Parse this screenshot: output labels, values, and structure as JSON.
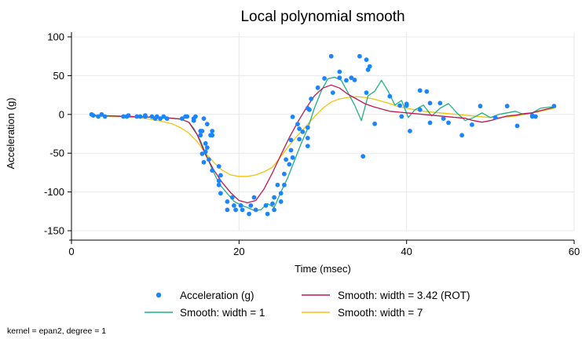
{
  "chart_data": {
    "type": "scatter",
    "title": "Local polynomial smooth",
    "xlabel": "Time (msec)",
    "ylabel": "Acceleration (g)",
    "xlim": [
      0,
      60
    ],
    "ylim": [
      -150,
      100
    ],
    "xticks": [
      0,
      20,
      40,
      60
    ],
    "yticks": [
      -150,
      -100,
      -50,
      0,
      50,
      100
    ],
    "grid": true,
    "legend_position": "bottom",
    "note": "kernel = epan2, degree = 1",
    "colors": {
      "scatter": "#1a85ff",
      "rot": "#c1184f",
      "w1": "#1fb082",
      "w7": "#f1c40f",
      "grid": "#e8e8e8",
      "background": "#ffffff"
    },
    "scatter": {
      "name": "Acceleration (g)",
      "x": [
        2.4,
        2.6,
        3.2,
        3.6,
        4.0,
        6.2,
        6.6,
        6.8,
        7.8,
        8.2,
        8.8,
        8.8,
        9.6,
        10.0,
        10.2,
        10.6,
        11.0,
        11.4,
        13.2,
        13.6,
        13.8,
        14.6,
        14.6,
        14.8,
        15.4,
        15.4,
        15.6,
        15.6,
        15.8,
        15.8,
        16.0,
        16.0,
        16.2,
        16.2,
        16.4,
        16.6,
        16.8,
        16.8,
        16.8,
        17.6,
        17.6,
        17.6,
        17.8,
        17.8,
        18.6,
        18.6,
        19.2,
        19.4,
        19.6,
        20.2,
        20.4,
        21.2,
        21.4,
        21.8,
        22.0,
        23.2,
        23.4,
        24.0,
        24.2,
        24.2,
        24.6,
        25.0,
        25.0,
        25.4,
        25.4,
        25.6,
        26.0,
        26.2,
        26.2,
        26.4,
        26.4,
        27.0,
        27.2,
        27.2,
        27.6,
        28.2,
        28.2,
        28.2,
        28.2,
        28.4,
        28.6,
        29.4,
        30.2,
        31.0,
        31.2,
        32.0,
        32.0,
        32.8,
        33.4,
        33.8,
        34.4,
        34.8,
        35.2,
        35.2,
        35.4,
        35.6,
        36.2,
        38.0,
        39.2,
        39.4,
        40.0,
        40.0,
        40.4,
        41.6,
        41.6,
        42.4,
        42.8,
        42.8,
        44.0,
        44.4,
        45.0,
        46.6,
        47.8,
        48.8,
        50.6,
        52.0,
        53.2,
        55.0,
        55.0,
        55.4,
        57.6
      ],
      "y": [
        0.0,
        -1.3,
        -2.7,
        0.0,
        -2.7,
        -2.7,
        -2.7,
        -1.3,
        -2.7,
        -2.7,
        -2.7,
        -1.3,
        -2.7,
        -5.4,
        -2.7,
        -5.4,
        -2.7,
        -5.4,
        -5.4,
        -2.7,
        -2.7,
        -5.4,
        -8.0,
        -2.7,
        -26.8,
        -21.5,
        -21.5,
        -50.8,
        -61.7,
        -5.4,
        -48.2,
        -37.5,
        -42.8,
        -12.4,
        -58.2,
        -26.8,
        -21.5,
        -26.8,
        -72.3,
        -67.0,
        -85.6,
        -91.0,
        -101.7,
        -78.5,
        -112.4,
        -123.1,
        -107.1,
        -117.5,
        -123.1,
        -117.5,
        -123.1,
        -128.3,
        -117.5,
        -107.1,
        -123.1,
        -117.5,
        -128.3,
        -115.1,
        -123.1,
        -107.1,
        -91.0,
        -112.4,
        -101.7,
        -91.0,
        -76.8,
        -58.2,
        -64.4,
        -46.2,
        -33.0,
        -55.7,
        -3.1,
        -12.4,
        -18.5,
        -32.0,
        -22.4,
        -40.8,
        -30.5,
        -17.0,
        8.0,
        6.1,
        20.0,
        34.4,
        46.5,
        75.0,
        28.0,
        47.3,
        55.0,
        43.9,
        47.3,
        44.4,
        75.0,
        -54.0,
        70.5,
        28.0,
        57.7,
        61.9,
        -12.1,
        23.4,
        11.4,
        -2.6,
        13.6,
        11.4,
        -21.5,
        6.1,
        30.9,
        29.6,
        -10.7,
        14.6,
        14.6,
        -5.4,
        -10.7,
        -26.8,
        -13.3,
        10.7,
        -4.0,
        10.7,
        -14.8,
        -2.7,
        -1.3,
        -2.7,
        10.7
      ]
    },
    "series": [
      {
        "name": "Smooth: width = 3.42 (ROT)",
        "x": [
          2.4,
          5,
          8,
          11,
          13,
          14,
          15,
          16,
          17,
          18,
          19,
          20,
          21,
          22,
          23,
          24,
          25,
          26,
          27,
          28,
          29,
          30,
          31,
          32,
          33,
          34,
          35,
          36,
          37,
          38,
          39,
          40,
          41,
          42,
          43,
          44,
          45,
          46,
          47,
          48,
          49,
          50,
          51,
          52,
          53,
          54,
          55,
          56,
          57.6
        ],
        "y": [
          -1.5,
          -2,
          -3,
          -4,
          -6,
          -10,
          -26,
          -52,
          -72,
          -88,
          -101,
          -111,
          -114,
          -111,
          -96,
          -75,
          -52,
          -30,
          -10,
          8,
          24,
          34,
          38,
          34,
          26,
          20,
          14,
          10,
          7,
          4,
          3,
          2,
          1,
          0,
          -1,
          -2,
          -3,
          -4,
          -5,
          -8,
          -10,
          -8,
          -5,
          -2,
          -1,
          1,
          2,
          5,
          9
        ]
      },
      {
        "name": "Smooth: width = 1",
        "x": [
          2.4,
          5,
          8,
          11,
          13,
          14,
          14.6,
          15.4,
          16.0,
          16.6,
          17.2,
          17.8,
          18.6,
          19.4,
          20.2,
          21.0,
          21.8,
          22.6,
          23.4,
          24.2,
          25.0,
          25.8,
          26.6,
          27.4,
          28.2,
          29.0,
          29.8,
          30.6,
          31.4,
          32.2,
          33.0,
          33.8,
          34.6,
          35.4,
          36.2,
          37.0,
          37.8,
          38.6,
          39.4,
          40.2,
          41.0,
          42.0,
          43.0,
          44.0,
          45.0,
          46.0,
          47.0,
          48.0,
          49.0,
          50.0,
          51.0,
          52.0,
          53.0,
          54.0,
          55.0,
          56.0,
          57.6
        ],
        "y": [
          -1,
          -2,
          -3,
          -4,
          -6,
          -10,
          -18,
          -34,
          -50,
          -66,
          -80,
          -92,
          -102,
          -112,
          -117,
          -120,
          -124,
          -123,
          -115,
          -120,
          -100,
          -82,
          -60,
          -38,
          -18,
          8,
          30,
          46,
          48,
          44,
          28,
          12,
          -8,
          24,
          30,
          44,
          30,
          12,
          18,
          -4,
          6,
          12,
          -2,
          8,
          14,
          2,
          -8,
          -4,
          2,
          -4,
          0,
          2,
          4,
          0,
          2,
          8,
          10
        ]
      },
      {
        "name": "Smooth: width = 7",
        "x": [
          2.4,
          5,
          8,
          10,
          12,
          13,
          14,
          15,
          16,
          17,
          18,
          19,
          20,
          21,
          22,
          23,
          24,
          25,
          26,
          27,
          28,
          29,
          30,
          31,
          32,
          33,
          34,
          35,
          36,
          37,
          38,
          39,
          40,
          41,
          42,
          43,
          44,
          45,
          46,
          47,
          48,
          49,
          50,
          51,
          52,
          53,
          54,
          55,
          56,
          57.6
        ],
        "y": [
          -2,
          -2.5,
          -4,
          -7,
          -12,
          -17,
          -24,
          -35,
          -50,
          -62,
          -72,
          -78,
          -80,
          -80,
          -78,
          -74,
          -68,
          -54,
          -40,
          -27,
          -15,
          -3,
          8,
          16,
          20,
          22,
          23,
          22,
          20,
          17,
          14,
          10,
          8,
          6,
          4,
          3,
          2,
          1,
          0,
          -1,
          -2,
          -3,
          -4,
          -4,
          -3,
          -2,
          0,
          2,
          4,
          8
        ]
      }
    ],
    "legend": [
      {
        "key": "scatter",
        "label": "Acceleration (g)"
      },
      {
        "key": "rot",
        "label": "Smooth: width = 3.42 (ROT)"
      },
      {
        "key": "w1",
        "label": "Smooth: width = 1"
      },
      {
        "key": "w7",
        "label": "Smooth: width = 7"
      }
    ]
  }
}
